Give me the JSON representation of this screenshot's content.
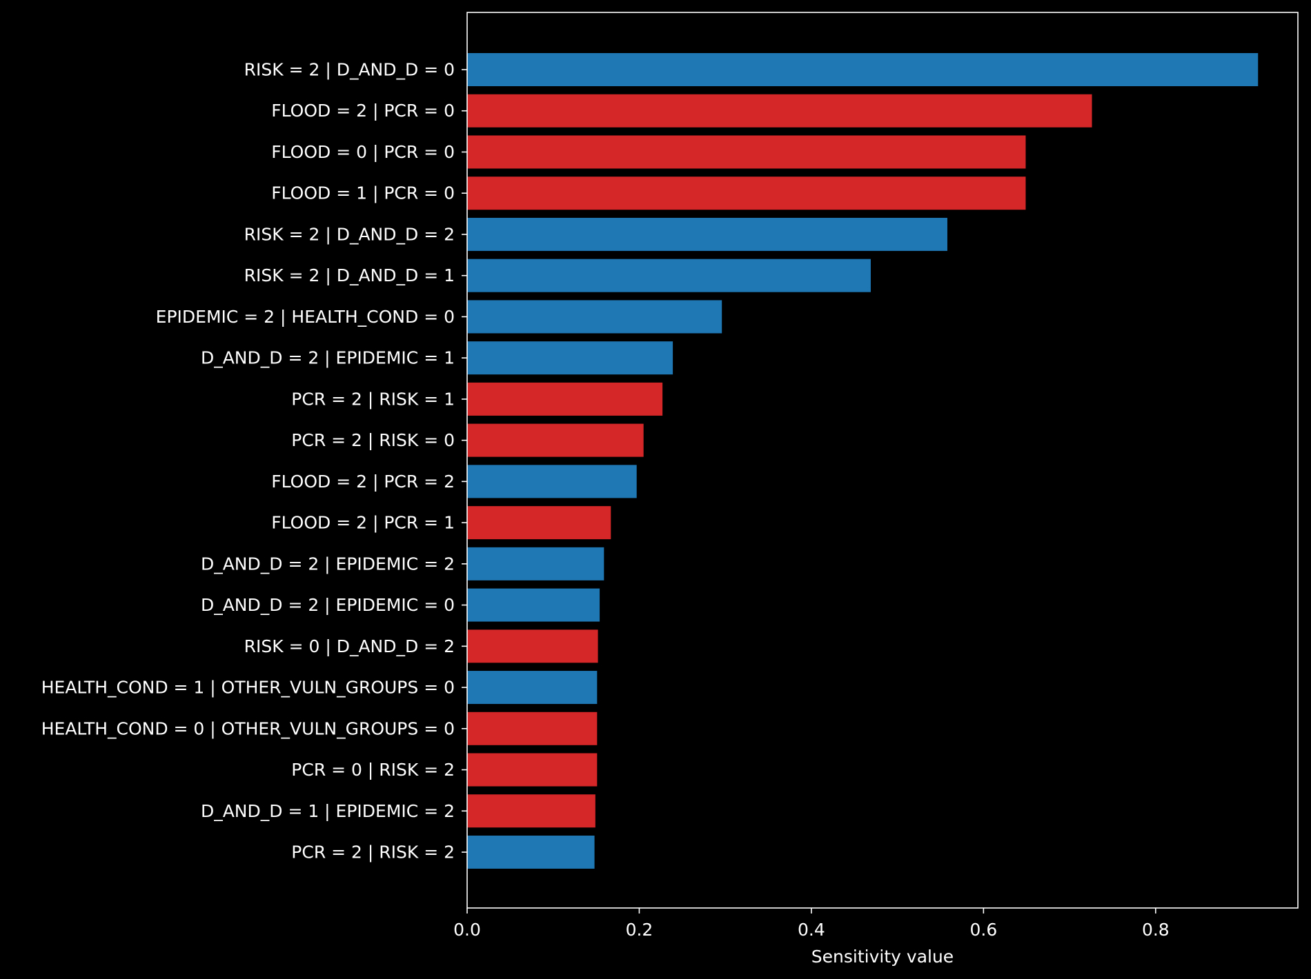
{
  "chart_data": {
    "type": "bar",
    "orientation": "horizontal",
    "title": "",
    "xlabel": "Sensitivity value",
    "ylabel": "",
    "xlim": [
      0,
      0.9653
    ],
    "xticks": [
      0,
      0.2,
      0.4,
      0.6,
      0.8
    ],
    "xtick_labels": [
      "0.0",
      "0.2",
      "0.4",
      "0.6",
      "0.8"
    ],
    "grid": false,
    "background": "#000000",
    "text_color": "#ffffff",
    "colors": {
      "blue": "#1f77b4",
      "red": "#d62728"
    },
    "bars": [
      {
        "label": "RISK = 2 | D_AND_D = 0",
        "value": 0.919,
        "color": "blue"
      },
      {
        "label": "FLOOD = 2 | PCR = 0",
        "value": 0.726,
        "color": "red"
      },
      {
        "label": "FLOOD = 0 | PCR = 0",
        "value": 0.649,
        "color": "red"
      },
      {
        "label": "FLOOD = 1 | PCR = 0",
        "value": 0.649,
        "color": "red"
      },
      {
        "label": "RISK = 2 | D_AND_D = 2",
        "value": 0.558,
        "color": "blue"
      },
      {
        "label": "RISK = 2 | D_AND_D = 1",
        "value": 0.469,
        "color": "blue"
      },
      {
        "label": "EPIDEMIC = 2 | HEALTH_COND = 0",
        "value": 0.296,
        "color": "blue"
      },
      {
        "label": "D_AND_D = 2 | EPIDEMIC = 1",
        "value": 0.239,
        "color": "blue"
      },
      {
        "label": "PCR = 2 | RISK = 1",
        "value": 0.227,
        "color": "red"
      },
      {
        "label": "PCR = 2 | RISK = 0",
        "value": 0.205,
        "color": "red"
      },
      {
        "label": "FLOOD = 2 | PCR = 2",
        "value": 0.197,
        "color": "blue"
      },
      {
        "label": "FLOOD = 2 | PCR = 1",
        "value": 0.167,
        "color": "red"
      },
      {
        "label": "D_AND_D = 2 | EPIDEMIC = 2",
        "value": 0.159,
        "color": "blue"
      },
      {
        "label": "D_AND_D = 2 | EPIDEMIC = 0",
        "value": 0.154,
        "color": "blue"
      },
      {
        "label": "RISK = 0 | D_AND_D = 2",
        "value": 0.152,
        "color": "red"
      },
      {
        "label": "HEALTH_COND = 1 | OTHER_VULN_GROUPS = 0",
        "value": 0.151,
        "color": "blue"
      },
      {
        "label": "HEALTH_COND = 0 | OTHER_VULN_GROUPS = 0",
        "value": 0.151,
        "color": "red"
      },
      {
        "label": "PCR = 0 | RISK = 2",
        "value": 0.151,
        "color": "red"
      },
      {
        "label": "D_AND_D = 1 | EPIDEMIC = 2",
        "value": 0.149,
        "color": "red"
      },
      {
        "label": "PCR = 2 | RISK = 2",
        "value": 0.148,
        "color": "blue"
      }
    ]
  }
}
